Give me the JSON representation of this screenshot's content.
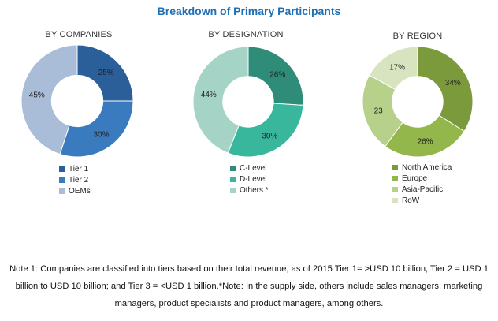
{
  "title": "Breakdown of Primary Participants",
  "chart_data": [
    {
      "type": "pie",
      "title": "BY COMPANIES",
      "categories": [
        "Tier 1",
        "Tier 2",
        "OEMs"
      ],
      "values": [
        25,
        30,
        45
      ],
      "labels": [
        "25%",
        "30%",
        "45%"
      ],
      "colors": [
        "#2a5f9a",
        "#3a7bbf",
        "#a9bcd8"
      ],
      "legend_position": "bottom"
    },
    {
      "type": "pie",
      "title": "BY DESIGNATION",
      "categories": [
        "C-Level",
        "D-Level",
        "Others *"
      ],
      "values": [
        26,
        30,
        44
      ],
      "labels": [
        "26%",
        "30%",
        "44%"
      ],
      "colors": [
        "#2e8c78",
        "#39b79c",
        "#a5d3c5"
      ],
      "legend_position": "bottom"
    },
    {
      "type": "pie",
      "title": "BY REGION",
      "categories": [
        "North America",
        "Europe",
        "Asia-Pacific",
        "RoW"
      ],
      "values": [
        34,
        26,
        23,
        17
      ],
      "labels": [
        "34%",
        "26%",
        "23",
        "17%"
      ],
      "colors": [
        "#7a9a3c",
        "#93b74a",
        "#b7d08a",
        "#d8e4c0"
      ],
      "legend_position": "bottom"
    }
  ],
  "note": "Note 1: Companies are classified into tiers based on their total revenue, as of 2015 Tier 1= >USD 10 billion, Tier 2 = USD 1 billion to USD 10 billion; and Tier 3 = <USD 1 billion.*Note: In the supply side, others include sales managers, marketing managers, product specialists and product managers, among others."
}
